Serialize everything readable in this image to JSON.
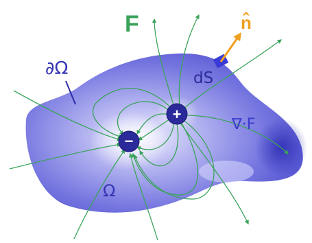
{
  "labels": {
    "field": "F",
    "normal": "n̂",
    "boundary": "∂Ω",
    "surface_element": "dS",
    "divergence": "∇·F",
    "region": "Ω",
    "positive_charge": "+",
    "negative_charge": "−"
  },
  "colors": {
    "field_lines": "#3aa35a",
    "field_label": "#3aa35a",
    "normal_arrow": "#f0a020",
    "region_label": "#3434b4",
    "surface_element": "#3a3ad8",
    "region_fill_light": "#ececff",
    "region_fill_dark": "#3c3cc8",
    "charge_fill": "#2a2a9a"
  }
}
